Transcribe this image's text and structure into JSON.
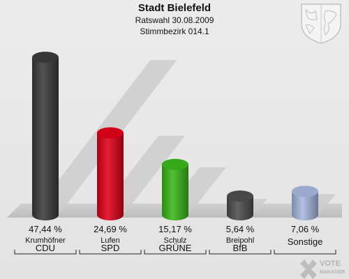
{
  "chart_data": {
    "type": "bar",
    "title": "Stadt Bielefeld",
    "subtitle": "Ratswahl 30.08.2009",
    "subtitle2": "Stimmbezirk 014.1",
    "categories": [
      "Krumhöfner",
      "Lufen",
      "Schulz",
      "Breipohl",
      "Sonstige"
    ],
    "parties": [
      "CDU",
      "SPD",
      "GRÜNE",
      "BfB",
      ""
    ],
    "values": [
      47.44,
      24.69,
      15.17,
      5.64,
      7.06
    ],
    "value_labels": [
      "47,44 %",
      "24,69 %",
      "15,17 %",
      "5,64 %",
      "7,06 %"
    ],
    "colors": [
      "#3c3c3c",
      "#e2001a",
      "#3ab81b",
      "#4e4e4e",
      "#a8b8e0"
    ],
    "ylim": [
      0,
      50
    ],
    "grid": false,
    "legend": "none"
  },
  "watermark": {
    "line1": "VOTE",
    "line2": "MANAGER"
  }
}
